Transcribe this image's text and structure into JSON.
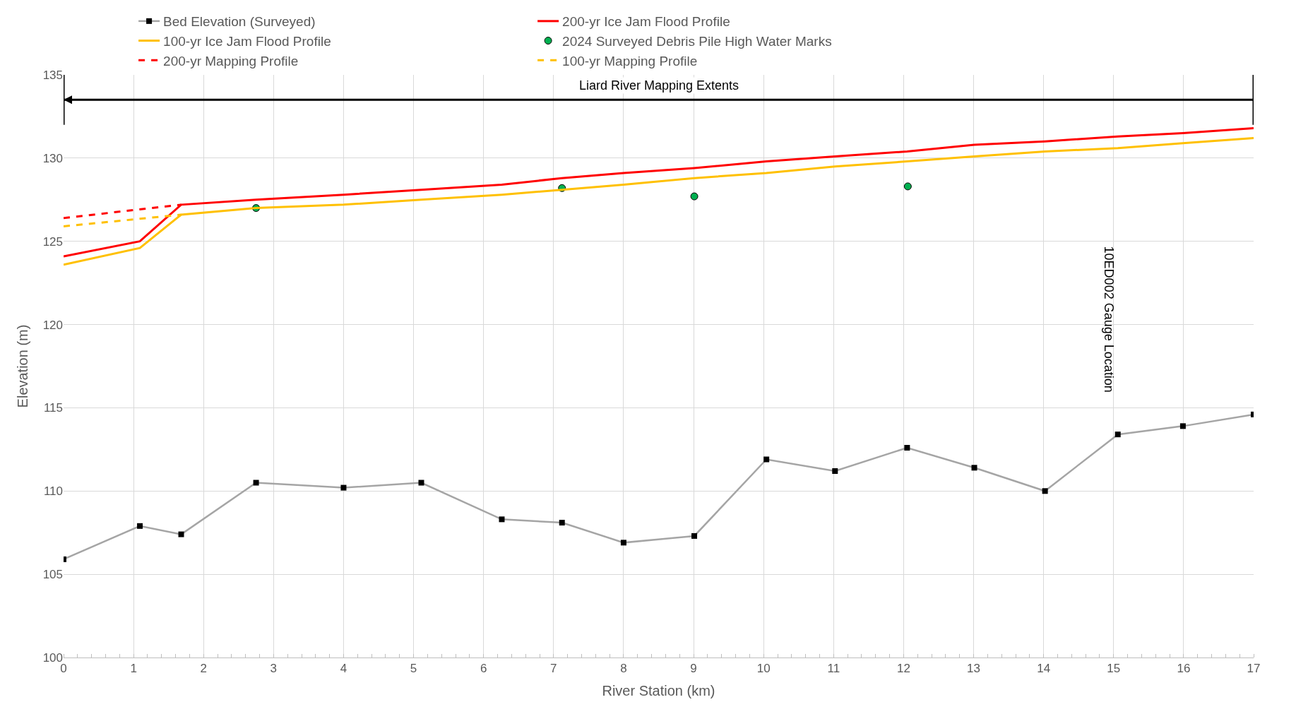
{
  "chart_data": {
    "type": "line",
    "xlabel": "River Station (km)",
    "ylabel": "Elevation (m)",
    "xlim": [
      0,
      17
    ],
    "xticks": [
      0,
      1,
      2,
      3,
      4,
      5,
      6,
      7,
      8,
      9,
      10,
      11,
      12,
      13,
      14,
      15,
      16,
      17
    ],
    "ylim": [
      100,
      135
    ],
    "yticks": [
      100,
      105,
      110,
      115,
      120,
      125,
      130,
      135
    ],
    "grid": true,
    "legend": "top",
    "series": [
      {
        "name": "Bed Elevation (Surveyed)",
        "color": "#a5a5a5",
        "marker": "square",
        "line_style": "solid",
        "x": [
          0,
          1.09,
          1.68,
          2.75,
          4.0,
          5.11,
          6.26,
          7.12,
          8.0,
          9.01,
          10.04,
          11.02,
          12.05,
          13.01,
          14.02,
          15.06,
          15.99,
          17
        ],
        "values": [
          105.9,
          107.9,
          107.4,
          110.5,
          110.2,
          110.5,
          108.3,
          108.1,
          106.9,
          107.3,
          111.9,
          111.2,
          112.6,
          111.4,
          110.0,
          113.4,
          113.9,
          114.6
        ]
      },
      {
        "name": "200-yr Ice Jam Flood Profile",
        "color": "#ff0000",
        "marker": "none",
        "line_style": "solid",
        "x": [
          0,
          1.09,
          1.68,
          2.75,
          4.0,
          5.11,
          6.26,
          7.12,
          8.0,
          9.01,
          10.04,
          11.02,
          12.05,
          13.01,
          14.02,
          15.06,
          15.99,
          17
        ],
        "values": [
          124.1,
          125.0,
          127.2,
          127.5,
          127.8,
          128.1,
          128.4,
          128.8,
          129.1,
          129.4,
          129.8,
          130.1,
          130.4,
          130.8,
          131.0,
          131.3,
          131.5,
          131.8
        ]
      },
      {
        "name": "100-yr Ice Jam Flood Profile",
        "color": "#ffc000",
        "marker": "none",
        "line_style": "solid",
        "x": [
          0,
          1.09,
          1.68,
          2.75,
          4.0,
          5.11,
          6.26,
          7.12,
          8.0,
          9.01,
          10.04,
          11.02,
          12.05,
          13.01,
          14.02,
          15.06,
          15.99,
          17
        ],
        "values": [
          123.6,
          124.6,
          126.6,
          127.0,
          127.2,
          127.5,
          127.8,
          128.1,
          128.4,
          128.8,
          129.1,
          129.5,
          129.8,
          130.1,
          130.4,
          130.6,
          130.9,
          131.2
        ]
      },
      {
        "name": "2024 Surveyed Debris Pile High Water Marks",
        "type": "scatter",
        "color": "#00b050",
        "marker": "circle",
        "x": [
          2.75,
          7.12,
          9.01,
          12.06
        ],
        "values": [
          127.0,
          128.2,
          127.7,
          128.3
        ]
      },
      {
        "name": "200-yr Mapping Profile",
        "color": "#ff0000",
        "marker": "none",
        "line_style": "dashed",
        "x": [
          0,
          1.68
        ],
        "values": [
          126.4,
          127.2
        ]
      },
      {
        "name": "100-yr Mapping Profile",
        "color": "#ffc000",
        "marker": "none",
        "line_style": "dashed",
        "x": [
          0,
          1.68
        ],
        "values": [
          125.9,
          126.6
        ]
      },
      {
        "color": "#000000",
        "marker": "none",
        "line_style": "solid",
        "x": [
          0,
          0,
          null,
          0,
          17,
          null,
          17,
          17
        ],
        "values": [
          135,
          132,
          null,
          133.5,
          133.5,
          null,
          135,
          132
        ]
      }
    ],
    "annotations": [
      {
        "text": "Liard River Mapping Extents",
        "x": 8.5,
        "y": 133.5
      },
      "10ED002 Gauge Location"
    ]
  }
}
